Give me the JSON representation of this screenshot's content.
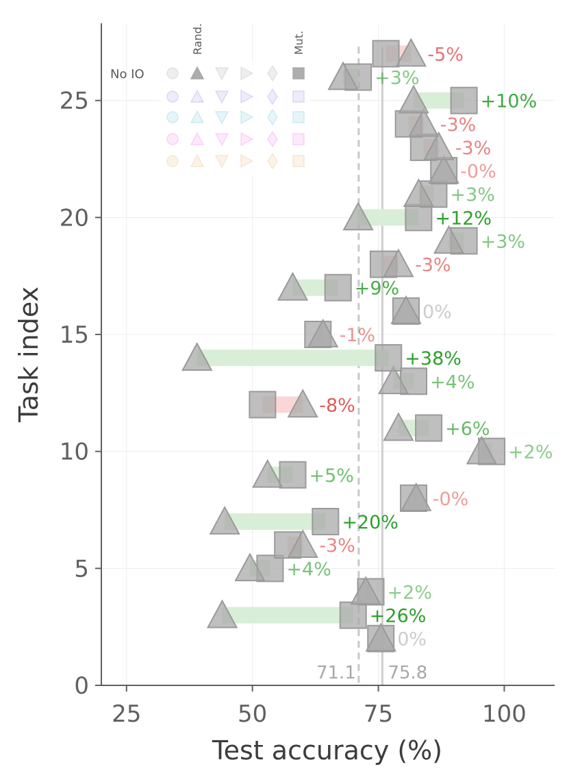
{
  "chart_data": {
    "type": "scatter",
    "xlabel": "Test accuracy (%)",
    "ylabel": "Task index",
    "xlim": [
      20,
      110
    ],
    "ylim": [
      0,
      28.3
    ],
    "xticks": [
      25,
      50,
      75,
      100
    ],
    "yticks": [
      0,
      5,
      10,
      15,
      20,
      25
    ],
    "grid": true,
    "reference_lines": [
      {
        "x": 71.1,
        "label": "71.1",
        "style": "dashed"
      },
      {
        "x": 75.8,
        "label": "75.8",
        "style": "solid"
      }
    ],
    "legend": {
      "placement": "top-left",
      "row_label": "No IO",
      "col_labels": [
        "Rand.",
        "Mut."
      ]
    },
    "series_markers": {
      "random": "triangle",
      "mutation": "square"
    },
    "tasks": [
      {
        "task": 2,
        "rand": 75.5,
        "mut": 75.5,
        "delta": "0%"
      },
      {
        "task": 3,
        "rand": 44,
        "mut": 70,
        "delta": "+26%"
      },
      {
        "task": 4,
        "rand": 72.5,
        "mut": 73.5,
        "delta": "+2%"
      },
      {
        "task": 5,
        "rand": 49.5,
        "mut": 53.5,
        "delta": "+4%"
      },
      {
        "task": 6,
        "rand": 60,
        "mut": 57,
        "delta": "-3%"
      },
      {
        "task": 7,
        "rand": 44.5,
        "mut": 64.5,
        "delta": "+20%"
      },
      {
        "task": 8,
        "rand": 82.5,
        "mut": 82,
        "delta": "-0%"
      },
      {
        "task": 9,
        "rand": 53,
        "mut": 58,
        "delta": "+5%"
      },
      {
        "task": 10,
        "rand": 95.5,
        "mut": 97.5,
        "delta": "+2%"
      },
      {
        "task": 11,
        "rand": 79,
        "mut": 85,
        "delta": "+6%"
      },
      {
        "task": 12,
        "rand": 60,
        "mut": 52,
        "delta": "-8%"
      },
      {
        "task": 13,
        "rand": 78,
        "mut": 82,
        "delta": "+4%"
      },
      {
        "task": 14,
        "rand": 39,
        "mut": 77,
        "delta": "+38%"
      },
      {
        "task": 15,
        "rand": 64,
        "mut": 63,
        "delta": "-1%"
      },
      {
        "task": 16,
        "rand": 80.5,
        "mut": 80.5,
        "delta": "0%"
      },
      {
        "task": 17,
        "rand": 58,
        "mut": 67,
        "delta": "+9%"
      },
      {
        "task": 18,
        "rand": 79,
        "mut": 76,
        "delta": "-3%"
      },
      {
        "task": 19,
        "rand": 89,
        "mut": 92,
        "delta": "+3%"
      },
      {
        "task": 20,
        "rand": 71,
        "mut": 83,
        "delta": "+12%"
      },
      {
        "task": 21,
        "rand": 83,
        "mut": 86,
        "delta": "+3%"
      },
      {
        "task": 22,
        "rand": 88,
        "mut": 88,
        "delta": "-0%"
      },
      {
        "task": 23,
        "rand": 87,
        "mut": 84,
        "delta": "-3%"
      },
      {
        "task": 24,
        "rand": 84,
        "mut": 81,
        "delta": "-3%"
      },
      {
        "task": 25,
        "rand": 82,
        "mut": 92,
        "delta": "+10%"
      },
      {
        "task": 26,
        "rand": 68,
        "mut": 71,
        "delta": "+3%"
      },
      {
        "task": 27,
        "rand": 81.5,
        "mut": 76.5,
        "delta": "-5%"
      }
    ]
  },
  "colors": {
    "axis": "#5f5f5f",
    "grid": "#ececec",
    "marker_fill": "#a9a9a9",
    "marker_stroke": "#9a9a9a",
    "positive": "#2ca02c",
    "negative": "#e05a5a",
    "neutral": "#cccccc",
    "bar_positive": "#d9eed6",
    "bar_negative": "#fbd6d6",
    "legend_colors": [
      "#a9a9a9",
      "#b9b3f0",
      "#9fd6e6",
      "#f3a8f0",
      "#f1cfa4"
    ]
  }
}
